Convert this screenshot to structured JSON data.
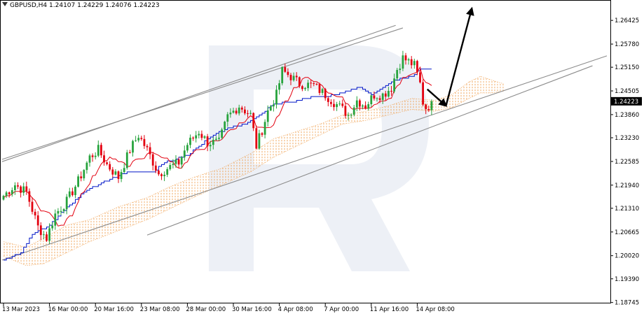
{
  "header": {
    "symbol": "GBPUSD,H4",
    "open": "1.24107",
    "high": "1.24229",
    "low": "1.24076",
    "close": "1.24223"
  },
  "colors": {
    "bull": "#27a33d",
    "bear": "#e3000f",
    "tenkan": "#e3000f",
    "kijun": "#0016c8",
    "cloud_bull": "#f0a050",
    "cloud_bear": "#c080c0",
    "channel": "#8c8c8c",
    "arrow": "#000000",
    "watermark": "#dfe4ef"
  },
  "chart_data": {
    "type": "candlestick",
    "instrument": "GBPUSD",
    "timeframe": "H4",
    "current_price": "1.24223",
    "ylim": [
      1.1872,
      1.2698
    ],
    "y_ticks": [
      "1.26425",
      "1.25780",
      "1.25150",
      "1.24505",
      "1.23860",
      "1.23230",
      "1.22585",
      "1.21940",
      "1.21310",
      "1.20665",
      "1.20020",
      "1.19390",
      "1.18745"
    ],
    "x_ticks": [
      {
        "label": "13 Mar 2023",
        "bar": 0
      },
      {
        "label": "16 Mar 00:00",
        "bar": 16
      },
      {
        "label": "20 Mar 16:00",
        "bar": 32
      },
      {
        "label": "23 Mar 08:00",
        "bar": 48
      },
      {
        "label": "28 Mar 00:00",
        "bar": 64
      },
      {
        "label": "30 Mar 16:00",
        "bar": 80
      },
      {
        "label": "4 Apr 08:00",
        "bar": 96
      },
      {
        "label": "7 Apr 00:00",
        "bar": 112
      },
      {
        "label": "11 Apr 16:00",
        "bar": 128
      },
      {
        "label": "14 Apr 08:00",
        "bar": 144
      }
    ],
    "anchors": [
      [
        0,
        1.2165
      ],
      [
        4,
        1.2195
      ],
      [
        8,
        1.2175
      ],
      [
        12,
        1.208
      ],
      [
        15,
        1.205
      ],
      [
        18,
        1.2115
      ],
      [
        22,
        1.215
      ],
      [
        26,
        1.2205
      ],
      [
        30,
        1.227
      ],
      [
        33,
        1.229
      ],
      [
        36,
        1.225
      ],
      [
        40,
        1.2215
      ],
      [
        44,
        1.229
      ],
      [
        47,
        1.233
      ],
      [
        50,
        1.229
      ],
      [
        54,
        1.2225
      ],
      [
        57,
        1.224
      ],
      [
        61,
        1.2255
      ],
      [
        64,
        1.2305
      ],
      [
        68,
        1.234
      ],
      [
        71,
        1.231
      ],
      [
        75,
        1.231
      ],
      [
        78,
        1.238
      ],
      [
        82,
        1.241
      ],
      [
        86,
        1.2385
      ],
      [
        88,
        1.23
      ],
      [
        90,
        1.2345
      ],
      [
        92,
        1.2395
      ],
      [
        95,
        1.244
      ],
      [
        97,
        1.2505
      ],
      [
        100,
        1.249
      ],
      [
        103,
        1.247
      ],
      [
        108,
        1.2465
      ],
      [
        112,
        1.244
      ],
      [
        115,
        1.242
      ],
      [
        118,
        1.24
      ],
      [
        120,
        1.2385
      ],
      [
        123,
        1.2425
      ],
      [
        126,
        1.241
      ],
      [
        129,
        1.244
      ],
      [
        132,
        1.244
      ],
      [
        135,
        1.246
      ],
      [
        137,
        1.251
      ],
      [
        139,
        1.254
      ],
      [
        141,
        1.253
      ],
      [
        143,
        1.252
      ],
      [
        145,
        1.247
      ],
      [
        146,
        1.242
      ],
      [
        147,
        1.2405
      ],
      [
        148,
        1.241
      ],
      [
        149,
        1.2422
      ]
    ],
    "kijun": [
      [
        0,
        1.199
      ],
      [
        6,
        1.201
      ],
      [
        10,
        1.206
      ],
      [
        16,
        1.2085
      ],
      [
        20,
        1.212
      ],
      [
        24,
        1.2145
      ],
      [
        28,
        1.2175
      ],
      [
        34,
        1.22
      ],
      [
        40,
        1.222
      ],
      [
        44,
        1.223
      ],
      [
        52,
        1.223
      ],
      [
        56,
        1.2255
      ],
      [
        60,
        1.2265
      ],
      [
        64,
        1.2275
      ],
      [
        68,
        1.23
      ],
      [
        72,
        1.2325
      ],
      [
        78,
        1.235
      ],
      [
        84,
        1.236
      ],
      [
        90,
        1.239
      ],
      [
        94,
        1.2415
      ],
      [
        100,
        1.242
      ],
      [
        108,
        1.2435
      ],
      [
        112,
        1.2435
      ],
      [
        118,
        1.2445
      ],
      [
        124,
        1.246
      ],
      [
        128,
        1.244
      ],
      [
        132,
        1.246
      ],
      [
        136,
        1.248
      ],
      [
        142,
        1.249
      ],
      [
        145,
        1.251
      ],
      [
        149,
        1.251
      ]
    ],
    "cloud_span_a": [
      [
        0,
        1.204
      ],
      [
        8,
        1.2025
      ],
      [
        14,
        1.205
      ],
      [
        22,
        1.2085
      ],
      [
        30,
        1.21
      ],
      [
        40,
        1.2135
      ],
      [
        50,
        1.216
      ],
      [
        58,
        1.219
      ],
      [
        66,
        1.2215
      ],
      [
        76,
        1.224
      ],
      [
        86,
        1.228
      ],
      [
        94,
        1.232
      ],
      [
        102,
        1.234
      ],
      [
        110,
        1.236
      ],
      [
        118,
        1.2385
      ],
      [
        126,
        1.2395
      ],
      [
        134,
        1.241
      ],
      [
        142,
        1.243
      ],
      [
        150,
        1.2425
      ],
      [
        156,
        1.244
      ],
      [
        162,
        1.2475
      ],
      [
        166,
        1.249
      ],
      [
        170,
        1.248
      ],
      [
        174,
        1.247
      ]
    ],
    "cloud_span_b": [
      [
        0,
        1.2
      ],
      [
        8,
        1.1975
      ],
      [
        14,
        1.198
      ],
      [
        22,
        1.201
      ],
      [
        30,
        1.204
      ],
      [
        40,
        1.207
      ],
      [
        50,
        1.21
      ],
      [
        58,
        1.213
      ],
      [
        66,
        1.216
      ],
      [
        76,
        1.2195
      ],
      [
        86,
        1.223
      ],
      [
        94,
        1.227
      ],
      [
        102,
        1.23
      ],
      [
        110,
        1.233
      ],
      [
        118,
        1.236
      ],
      [
        126,
        1.237
      ],
      [
        134,
        1.2385
      ],
      [
        142,
        1.24
      ],
      [
        150,
        1.2395
      ],
      [
        156,
        1.2405
      ],
      [
        162,
        1.243
      ],
      [
        166,
        1.2445
      ],
      [
        170,
        1.2445
      ],
      [
        174,
        1.245
      ]
    ],
    "channel_lines": [
      {
        "from": [
          -0.5,
          1.2258
        ],
        "to": [
          136.5,
          1.2629
        ]
      },
      {
        "from": [
          -0.5,
          1.2264
        ],
        "to": [
          139.0,
          1.2622
        ]
      },
      {
        "from": [
          -0.5,
          1.199
        ],
        "to": [
          210.0,
          1.2546
        ]
      },
      {
        "from": [
          50.0,
          1.2058
        ],
        "to": [
          205.0,
          1.2519
        ]
      }
    ],
    "forecast_arrows": [
      {
        "from": [
          147.5,
          1.2455
        ],
        "to": [
          154.0,
          1.241
        ]
      },
      {
        "from": [
          154.0,
          1.241
        ],
        "to": [
          163.0,
          1.2675
        ]
      }
    ],
    "grid": false,
    "legend": "none"
  }
}
